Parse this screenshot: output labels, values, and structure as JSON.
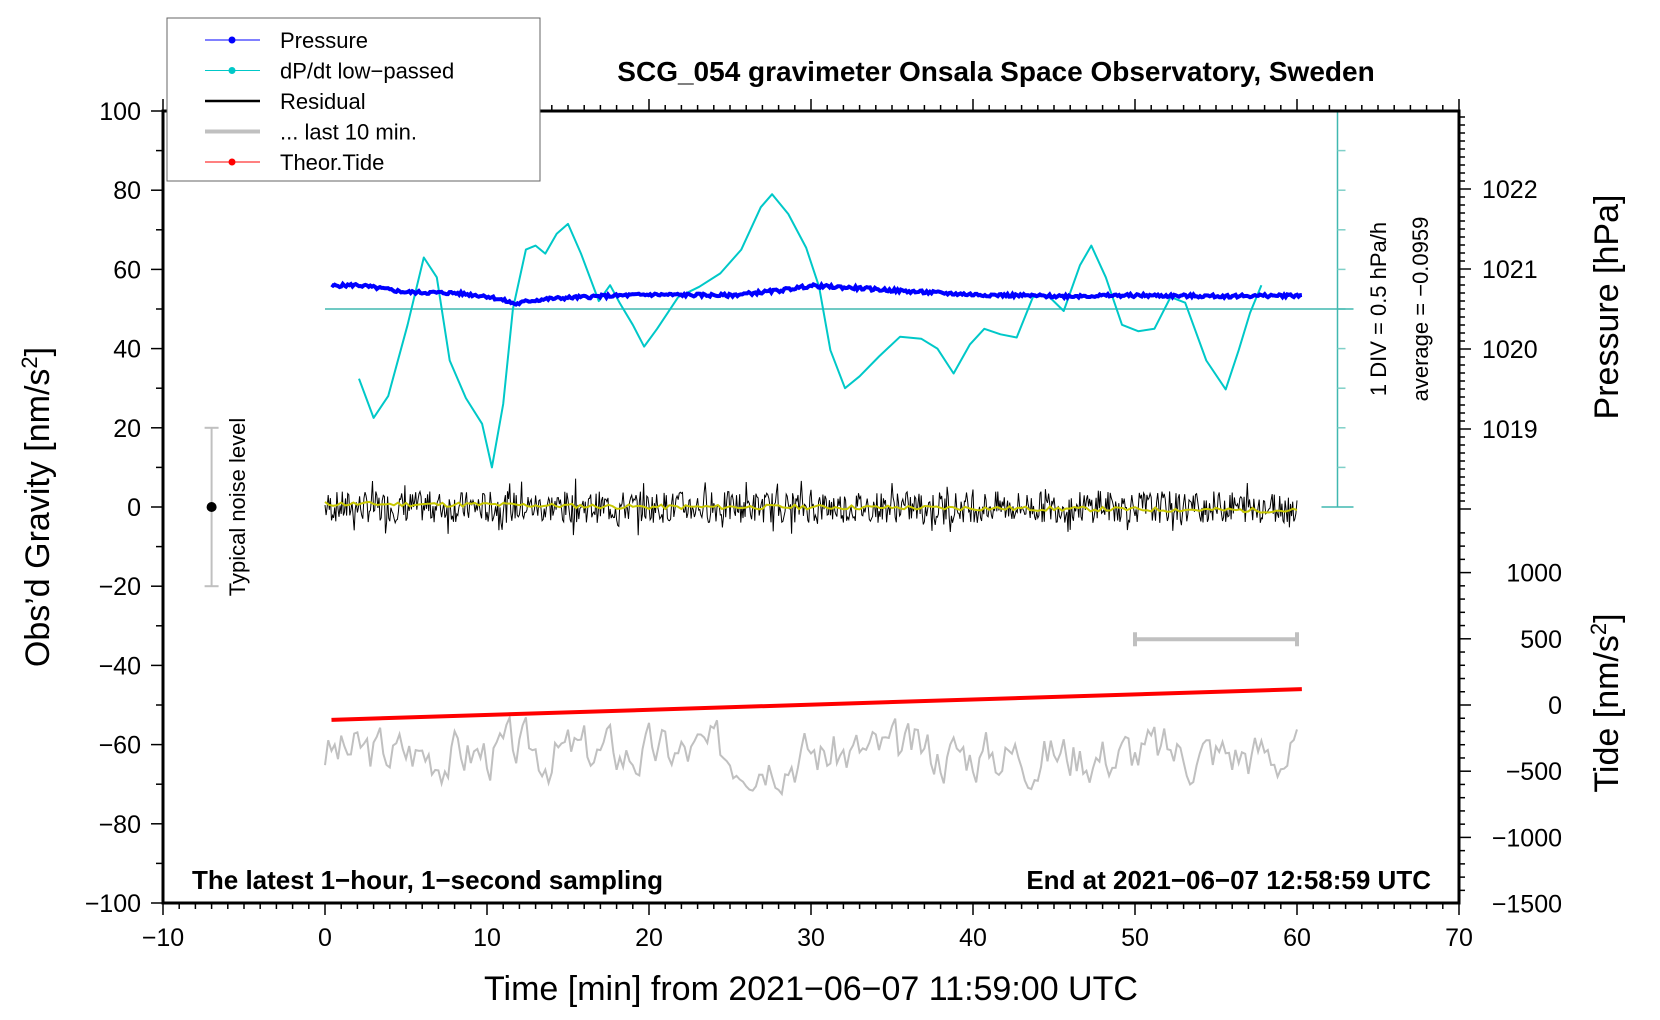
{
  "chart_data": {
    "type": "line",
    "title": "SCG_054 gravimeter Onsala Space Observatory, Sweden",
    "xlabel": "Time [min] from 2021−06−07 11:59:00 UTC",
    "ylabel_left": "Obs’d Gravity [nm/s",
    "ylabel_left_sup": "2",
    "ylabel_left_end": "]",
    "ylabel_right_pressure": "Pressure [hPa]",
    "ylabel_right_tide": "Tide [nm/s",
    "ylabel_right_tide_sup": "2",
    "ylabel_right_tide_end": "]",
    "xlim": [
      -10,
      70
    ],
    "ylim": [
      -100,
      100
    ],
    "pressure_lim_ref": {
      "value": 1022,
      "per_gravity_unit": 0.0125
    },
    "tide_ref": {
      "value": 0,
      "per_gravity_unit": 15.6
    },
    "x_ticks": [
      "−10",
      "0",
      "10",
      "20",
      "30",
      "40",
      "50",
      "60",
      "70"
    ],
    "x_tick_values": [
      -10,
      0,
      10,
      20,
      30,
      40,
      50,
      60,
      70
    ],
    "y_ticks": [
      "100",
      "80",
      "60",
      "40",
      "20",
      "0",
      "−20",
      "−40",
      "−60",
      "−80",
      "−100"
    ],
    "y_tick_values": [
      100,
      80,
      60,
      40,
      20,
      0,
      -20,
      -40,
      -60,
      -80,
      -100
    ],
    "pressure_ticks": [
      "1022",
      "1021",
      "1020",
      "1019"
    ],
    "pressure_tick_values": [
      1022,
      1021,
      1020,
      1019
    ],
    "tide_ticks": [
      "1000",
      "500",
      "0",
      "−500",
      "−1000",
      "−1500"
    ],
    "tide_tick_values": [
      1000,
      500,
      0,
      -500,
      -1000,
      -1500
    ],
    "legend": {
      "placement": "top-left",
      "items": [
        {
          "label": "Pressure",
          "color": "#0000ff",
          "marker": true
        },
        {
          "label": "dP/dt low−passed",
          "color": "#00c8c8",
          "marker": true
        },
        {
          "label": "Residual",
          "color": "#000000",
          "marker": false
        },
        {
          "label": "... last 10 min.",
          "color": "#c0c0c0",
          "marker": false
        },
        {
          "label": "Theor.Tide",
          "color": "#ff0000",
          "marker": true
        }
      ]
    },
    "annotations": {
      "bottom_left": "The latest 1−hour, 1−second sampling",
      "bottom_right": "End at 2021−06−07 12:58:59 UTC",
      "div_label": "1 DIV = 0.5 hPa/h",
      "average_label": "average = −0.0959",
      "noise_label": "Typical noise level"
    },
    "noise_bar": {
      "x": -7,
      "low": -20,
      "high": 20,
      "center": 0
    },
    "last10_bar": {
      "x0": 50,
      "x1": 60,
      "y": -33.4
    },
    "dpdt_scale": {
      "x_min": 62.5,
      "low": 0,
      "high": 100,
      "div": 10,
      "zero_line": 50
    },
    "series": [
      {
        "name": "dP/dt low-passed",
        "color": "#00c8c8",
        "axis": "left",
        "x": [
          2.1,
          3.0,
          3.9,
          5.1,
          6.1,
          6.9,
          7.7,
          8.7,
          9.7,
          10.3,
          11.0,
          11.6,
          12.4,
          13.0,
          13.6,
          14.3,
          15.0,
          15.8,
          16.9,
          17.6,
          18.2,
          19.0,
          19.7,
          20.5,
          21.8,
          23.1,
          24.4,
          25.7,
          26.9,
          27.6,
          28.6,
          29.7,
          30.5,
          31.2,
          32.1,
          33.0,
          34.2,
          35.5,
          36.8,
          37.8,
          38.8,
          39.8,
          40.7,
          41.7,
          42.7,
          43.7,
          44.6,
          45.6,
          46.6,
          47.3,
          48.2,
          49.2,
          50.2,
          51.2,
          52.2,
          53.1,
          54.4,
          55.6,
          56.4,
          57.1,
          57.8
        ],
        "y": [
          32.4,
          22.5,
          28,
          46,
          63,
          58,
          37,
          27.5,
          21,
          10,
          26,
          50,
          65,
          66,
          64,
          69,
          71.5,
          64,
          52,
          56,
          51.5,
          46,
          40.5,
          45,
          53,
          55.6,
          59,
          65,
          75.7,
          79,
          74,
          65.5,
          55.6,
          39.6,
          30,
          33,
          38,
          43,
          42.5,
          40,
          33.7,
          41,
          45,
          43.6,
          42.8,
          53,
          53.5,
          49.5,
          61,
          66,
          58,
          46,
          44.4,
          45,
          53,
          51.6,
          37,
          29.7,
          39.6,
          49,
          56
        ]
      },
      {
        "name": "Pressure",
        "color": "#0000ff",
        "axis": "pressure",
        "x": [
          0.4,
          2,
          5,
          8,
          10,
          11,
          11.8,
          12.5,
          14,
          17,
          20,
          25,
          28,
          30,
          33,
          36,
          40,
          45,
          50,
          55,
          60.3
        ],
        "y": [
          1020.79,
          1020.8,
          1020.71,
          1020.7,
          1020.66,
          1020.61,
          1020.56,
          1020.6,
          1020.63,
          1020.66,
          1020.68,
          1020.67,
          1020.73,
          1020.79,
          1020.76,
          1020.72,
          1020.68,
          1020.66,
          1020.67,
          1020.66,
          1020.67
        ]
      },
      {
        "name": "Residual",
        "color": "#000000",
        "axis": "left",
        "x_range": [
          0,
          60
        ],
        "mean": 0,
        "amplitude": 4,
        "seed": 7
      },
      {
        "name": "Residual smoothed",
        "color": "#c8c800",
        "axis": "left",
        "x": [
          0,
          10,
          20,
          30,
          40,
          50,
          60
        ],
        "y": [
          0.8,
          0.6,
          0,
          0,
          -0.3,
          -0.6,
          -0.9
        ]
      },
      {
        "name": "Theor.Tide",
        "color": "#ff0000",
        "axis": "tide",
        "x": [
          0.4,
          60.3
        ],
        "y": [
          -112,
          120
        ]
      },
      {
        "name": "... last 10 min.",
        "color": "#c0c0c0",
        "axis": "left",
        "x_range": [
          0,
          60
        ],
        "mean": -62,
        "amplitude": 4,
        "seed": 3
      }
    ]
  }
}
